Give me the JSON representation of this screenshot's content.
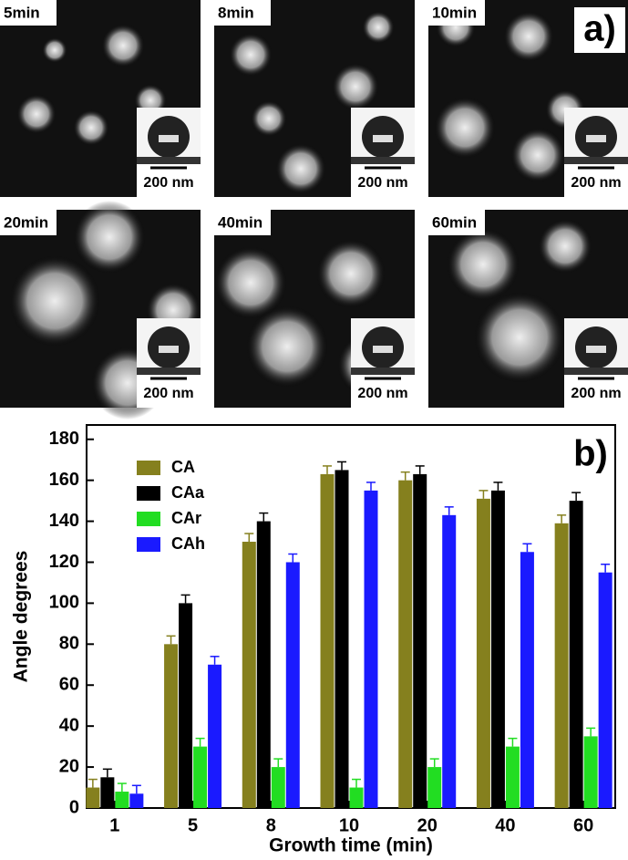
{
  "figure_a": {
    "label": "a)",
    "panels": [
      {
        "time": "5min",
        "scale": "200 nm"
      },
      {
        "time": "8min",
        "scale": "200 nm"
      },
      {
        "time": "10min",
        "scale": "200 nm"
      },
      {
        "time": "20min",
        "scale": "200 nm"
      },
      {
        "time": "40min",
        "scale": "200 nm"
      },
      {
        "time": "60min",
        "scale": "200 nm"
      }
    ]
  },
  "chart_data": {
    "type": "bar",
    "label": "b)",
    "x_label": "Growth time (min)",
    "y_label": "Angle degrees",
    "categories": [
      "1",
      "5",
      "8",
      "10",
      "20",
      "40",
      "60"
    ],
    "series": [
      {
        "name": "CA",
        "color": "#85801e",
        "values": [
          10,
          80,
          130,
          163,
          160,
          151,
          139
        ],
        "errors": [
          4,
          4,
          4,
          4,
          4,
          4,
          4
        ]
      },
      {
        "name": "CAa",
        "color": "#000000",
        "values": [
          15,
          100,
          140,
          165,
          163,
          155,
          150
        ],
        "errors": [
          4,
          4,
          4,
          4,
          4,
          4,
          4
        ]
      },
      {
        "name": "CAr",
        "color": "#22dd22",
        "values": [
          8,
          30,
          20,
          10,
          20,
          30,
          35
        ],
        "errors": [
          4,
          4,
          4,
          4,
          4,
          4,
          4
        ]
      },
      {
        "name": "CAh",
        "color": "#1a1aff",
        "values": [
          7,
          70,
          120,
          155,
          143,
          125,
          115
        ],
        "errors": [
          4,
          4,
          4,
          4,
          4,
          4,
          4
        ]
      }
    ],
    "ylim": [
      0,
      187
    ],
    "yticks": [
      0,
      20,
      40,
      60,
      80,
      100,
      120,
      140,
      160,
      180
    ],
    "legend": "top-left"
  }
}
